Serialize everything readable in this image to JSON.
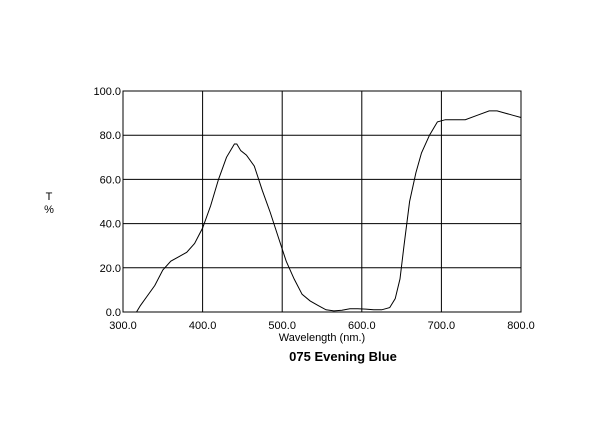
{
  "chart_data": {
    "type": "line",
    "title": "075 Evening Blue",
    "xlabel": "Wavelength (nm.)",
    "ylabel_top": "T",
    "ylabel_bottom": "%",
    "xlim": [
      300,
      800
    ],
    "ylim": [
      0,
      100
    ],
    "grid": true,
    "x_ticks": [
      "300.0",
      "400.0",
      "500.0",
      "600.0",
      "700.0",
      "800.0"
    ],
    "y_ticks": [
      "0.0",
      "20.0",
      "40.0",
      "60.0",
      "80.0",
      "100.0"
    ],
    "series": [
      {
        "color": "#000000",
        "x": [
          317,
          322,
          330,
          340,
          350,
          360,
          370,
          380,
          390,
          400,
          410,
          420,
          430,
          440,
          443,
          448,
          455,
          465,
          475,
          485,
          495,
          505,
          515,
          525,
          535,
          545,
          555,
          565,
          575,
          585,
          595,
          605,
          615,
          625,
          635,
          642,
          648,
          653,
          660,
          668,
          675,
          685,
          695,
          705,
          715,
          730,
          745,
          760,
          770,
          780,
          790,
          800
        ],
        "y": [
          0,
          3,
          7,
          12,
          19,
          23,
          25,
          27,
          31,
          38,
          48,
          60,
          70,
          76,
          76,
          73,
          71,
          66,
          55,
          45,
          34,
          23,
          15,
          8,
          5,
          3,
          1,
          0.5,
          0.8,
          1.5,
          1.5,
          1.3,
          1.0,
          1.0,
          2.0,
          6,
          15,
          30,
          50,
          63,
          72,
          80,
          86,
          87,
          87,
          87,
          89,
          91,
          91,
          90,
          89,
          88
        ]
      }
    ]
  }
}
